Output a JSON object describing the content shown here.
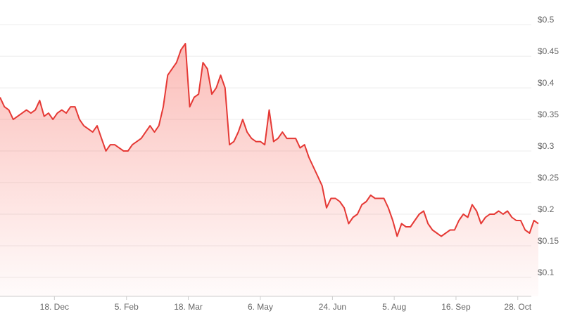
{
  "chart_data": {
    "type": "area",
    "x": [
      0,
      3,
      6,
      9,
      12,
      15,
      18,
      21,
      24,
      27,
      30,
      33,
      36,
      39,
      42,
      45,
      48,
      51,
      54,
      57,
      60,
      63,
      66,
      69,
      72,
      75,
      78,
      81,
      84,
      87,
      90,
      93,
      96,
      99,
      102,
      105,
      108,
      111,
      114,
      117,
      120,
      123,
      126,
      129,
      132,
      135,
      138,
      141,
      144,
      147,
      150,
      153,
      156,
      159,
      162,
      165,
      168,
      171,
      174,
      177,
      180,
      183,
      186,
      189,
      192,
      195,
      198,
      201,
      204,
      207,
      210,
      213,
      216,
      219,
      222,
      225,
      228,
      231,
      234,
      237,
      240,
      243,
      246,
      249,
      252,
      255,
      258,
      261,
      264,
      267,
      270,
      273,
      276,
      279,
      282,
      285,
      288,
      291,
      294,
      297,
      300,
      303,
      306,
      309,
      312,
      315,
      318,
      321,
      324,
      327,
      330,
      333,
      336,
      339,
      342,
      345,
      348,
      351,
      354,
      357,
      360,
      363,
      366
    ],
    "values": [
      0.385,
      0.37,
      0.365,
      0.35,
      0.355,
      0.36,
      0.365,
      0.36,
      0.365,
      0.38,
      0.355,
      0.36,
      0.35,
      0.36,
      0.365,
      0.36,
      0.37,
      0.37,
      0.35,
      0.34,
      0.335,
      0.33,
      0.34,
      0.32,
      0.3,
      0.31,
      0.31,
      0.305,
      0.3,
      0.3,
      0.31,
      0.315,
      0.32,
      0.33,
      0.34,
      0.33,
      0.34,
      0.37,
      0.42,
      0.43,
      0.44,
      0.46,
      0.47,
      0.37,
      0.385,
      0.39,
      0.44,
      0.43,
      0.39,
      0.4,
      0.42,
      0.4,
      0.31,
      0.315,
      0.33,
      0.35,
      0.33,
      0.32,
      0.315,
      0.315,
      0.31,
      0.365,
      0.315,
      0.32,
      0.33,
      0.32,
      0.32,
      0.32,
      0.305,
      0.31,
      0.29,
      0.275,
      0.26,
      0.245,
      0.21,
      0.225,
      0.225,
      0.22,
      0.21,
      0.185,
      0.195,
      0.2,
      0.215,
      0.22,
      0.23,
      0.225,
      0.225,
      0.225,
      0.21,
      0.19,
      0.165,
      0.185,
      0.18,
      0.18,
      0.19,
      0.2,
      0.205,
      0.185,
      0.175,
      0.17,
      0.165,
      0.17,
      0.175,
      0.175,
      0.19,
      0.2,
      0.195,
      0.215,
      0.205,
      0.185,
      0.195,
      0.2,
      0.2,
      0.205,
      0.2,
      0.205,
      0.195,
      0.19,
      0.19,
      0.175,
      0.17,
      0.19,
      0.185
    ],
    "color": "#e53935",
    "xlim": [
      0,
      366
    ],
    "xticks": [
      {
        "value": 37,
        "label": "18. Dec"
      },
      {
        "value": 86,
        "label": "5. Feb"
      },
      {
        "value": 128,
        "label": "18. Mar"
      },
      {
        "value": 177,
        "label": "6. May"
      },
      {
        "value": 226,
        "label": "24. Jun"
      },
      {
        "value": 268,
        "label": "5. Aug"
      },
      {
        "value": 310,
        "label": "16. Sep"
      },
      {
        "value": 352,
        "label": "28. Oct"
      }
    ],
    "ylim": [
      0.07,
      0.539
    ],
    "yticks": [
      {
        "value": 0.1,
        "label": "$0.1"
      },
      {
        "value": 0.15,
        "label": "$0.15"
      },
      {
        "value": 0.2,
        "label": "$0.2"
      },
      {
        "value": 0.25,
        "label": "$0.25"
      },
      {
        "value": 0.3,
        "label": "$0.3"
      },
      {
        "value": 0.35,
        "label": "$0.35"
      },
      {
        "value": 0.4,
        "label": "$0.4"
      },
      {
        "value": 0.45,
        "label": "$0.45"
      },
      {
        "value": 0.5,
        "label": "$0.5"
      }
    ],
    "grid": true
  }
}
